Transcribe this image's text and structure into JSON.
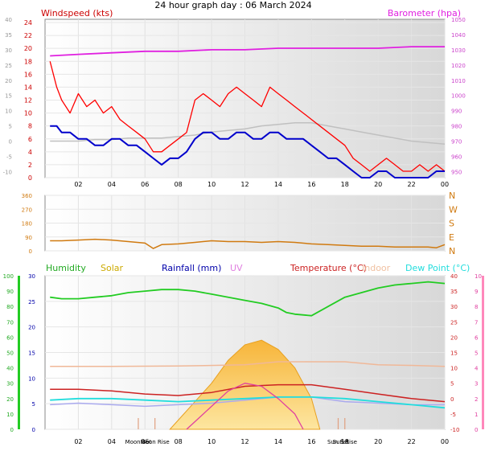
{
  "title": "24 hour graph day : 06 March 2024",
  "colors": {
    "wind_avg": "#0000cc",
    "wind_gust": "#ff0000",
    "barometer": "#e020e0",
    "temp_c_light": "#c0c0c0",
    "direction": "#d07a10",
    "humidity": "#22cc22",
    "solar": "#f8c040",
    "rain": "#0000aa",
    "uv": "#e040a0",
    "temperature": "#cc2222",
    "indoor": "#f0b898",
    "dewpoint": "#22dddd",
    "outdoor_light": "#aaaaee"
  },
  "chart_data": [
    {
      "type": "line",
      "panel": "wind-barometer",
      "title": "",
      "left_axis_title": "Windspeed (kts)",
      "right_axis_title": "Barometer (hpa)",
      "x_ticks": [
        "02",
        "04",
        "06",
        "08",
        "10",
        "12",
        "14",
        "16",
        "18",
        "20",
        "22",
        "00"
      ],
      "x_tick_hours": [
        2,
        4,
        6,
        8,
        10,
        12,
        14,
        16,
        18,
        20,
        22,
        24
      ],
      "left_ticks": [
        "0",
        "2",
        "4",
        "6",
        "8",
        "10",
        "12",
        "14",
        "16",
        "18",
        "20",
        "22",
        "24"
      ],
      "left_ylim": [
        0,
        24.5
      ],
      "outer_ticks": [
        "-10",
        "-5",
        "0",
        "5",
        "10",
        "15",
        "20",
        "25",
        "30",
        "35",
        "40"
      ],
      "outer_ylim": [
        -12,
        40
      ],
      "right_ticks": [
        "950",
        "960",
        "970",
        "980",
        "990",
        "1000",
        "1010",
        "1020",
        "1030",
        "1040",
        "1050"
      ],
      "right_ylim": [
        946,
        1050
      ],
      "series": [
        {
          "key": "gust",
          "hours": [
            0.3,
            0.7,
            1,
            1.5,
            2,
            2.5,
            3,
            3.5,
            4,
            4.5,
            5,
            5.5,
            6,
            6.5,
            7,
            7.5,
            8,
            8.5,
            9,
            9.5,
            10,
            10.5,
            11,
            11.5,
            12,
            12.5,
            13,
            13.5,
            14,
            14.5,
            15,
            15.5,
            16,
            16.5,
            17,
            17.5,
            18,
            18.5,
            19,
            19.5,
            20,
            20.5,
            21,
            21.5,
            22,
            22.5,
            23,
            23.5,
            24
          ],
          "values": [
            18,
            14,
            12,
            10,
            13,
            11,
            12,
            10,
            11,
            9,
            8,
            7,
            6,
            4,
            4,
            5,
            6,
            7,
            12,
            13,
            12,
            11,
            13,
            14,
            13,
            12,
            11,
            14,
            13,
            12,
            11,
            10,
            9,
            8,
            7,
            6,
            5,
            3,
            2,
            1,
            2,
            3,
            2,
            1,
            1,
            2,
            1,
            2,
            1
          ]
        },
        {
          "key": "avg",
          "hours": [
            0.3,
            0.7,
            1,
            1.5,
            2,
            2.5,
            3,
            3.5,
            4,
            4.5,
            5,
            5.5,
            6,
            6.5,
            7,
            7.5,
            8,
            8.5,
            9,
            9.5,
            10,
            10.5,
            11,
            11.5,
            12,
            12.5,
            13,
            13.5,
            14,
            14.5,
            15,
            15.5,
            16,
            16.5,
            17,
            17.5,
            18,
            18.5,
            19,
            19.5,
            20,
            20.5,
            21,
            21.5,
            22,
            22.5,
            23,
            23.5,
            24
          ],
          "values": [
            8,
            8,
            7,
            7,
            6,
            6,
            5,
            5,
            6,
            6,
            5,
            5,
            4,
            3,
            2,
            3,
            3,
            4,
            6,
            7,
            7,
            6,
            6,
            7,
            7,
            6,
            6,
            7,
            7,
            6,
            6,
            6,
            5,
            4,
            3,
            3,
            2,
            1,
            0,
            0,
            1,
            1,
            0,
            0,
            0,
            0,
            0,
            1,
            1
          ]
        },
        {
          "key": "temp",
          "hours": [
            0.3,
            1,
            2,
            3,
            4,
            5,
            6,
            7,
            8,
            9,
            10,
            11,
            12,
            13,
            14,
            15,
            16,
            17,
            18,
            19,
            20,
            21,
            22,
            23,
            24
          ],
          "values": [
            0,
            0,
            0,
            0.5,
            0.5,
            1,
            1,
            1,
            1.5,
            2,
            3,
            3.5,
            4,
            5,
            5.5,
            6,
            6,
            5,
            4,
            3,
            2,
            1,
            0,
            -0.5,
            -1
          ]
        },
        {
          "key": "baro",
          "hours": [
            0.3,
            2,
            4,
            6,
            8,
            10,
            12,
            14,
            16,
            18,
            20,
            22,
            24
          ],
          "values": [
            1026,
            1027,
            1028,
            1029,
            1029,
            1030,
            1030,
            1031,
            1031,
            1031,
            1031,
            1032,
            1032
          ]
        }
      ]
    },
    {
      "type": "line",
      "panel": "wind-direction",
      "title": "",
      "left_ticks": [
        "0",
        "90",
        "180",
        "270",
        "360"
      ],
      "ylim": [
        0,
        360
      ],
      "right_labels": [
        "N",
        "E",
        "S",
        "W",
        "N"
      ],
      "series": [
        {
          "key": "dir",
          "hours": [
            0.3,
            1,
            2,
            3,
            4,
            5,
            6,
            6.5,
            7,
            8,
            9,
            10,
            11,
            12,
            13,
            14,
            15,
            16,
            17,
            18,
            19,
            20,
            21,
            22,
            23,
            23.5,
            24
          ],
          "values": [
            65,
            65,
            70,
            75,
            70,
            60,
            50,
            15,
            40,
            45,
            55,
            65,
            60,
            60,
            55,
            60,
            55,
            45,
            40,
            35,
            30,
            30,
            25,
            25,
            25,
            20,
            40
          ]
        }
      ]
    },
    {
      "type": "line",
      "panel": "humidity-temperature",
      "title": "",
      "legend": [
        "Humidity",
        "Solar",
        "Rainfall (mm)",
        "UV",
        "Temperature (°C)",
        "Indoor",
        "Dew Point (°C)"
      ],
      "humidity_ticks": [
        "0",
        "10",
        "20",
        "30",
        "40",
        "50",
        "60",
        "70",
        "80",
        "90",
        "100"
      ],
      "humidity_ylim": [
        0,
        100
      ],
      "rain_ticks": [
        "0",
        "5",
        "10",
        "15",
        "20",
        "25",
        "30"
      ],
      "rain_ylim": [
        0,
        30
      ],
      "temp_ticks": [
        "-10",
        "-5",
        "0",
        "5",
        "10",
        "15",
        "20",
        "25",
        "30",
        "35",
        "40"
      ],
      "temp_ylim": [
        -10,
        40
      ],
      "uv_ticks": [
        "0",
        "1",
        "2",
        "3",
        "4",
        "5",
        "6",
        "7",
        "8",
        "9",
        "10"
      ],
      "uv_ylim": [
        0,
        10
      ],
      "x_ticks": [
        "02",
        "04",
        "06",
        "08",
        "10",
        "12",
        "14",
        "16",
        "18",
        "20",
        "22",
        "00"
      ],
      "x_tick_hours": [
        2,
        4,
        6,
        8,
        10,
        12,
        14,
        16,
        18,
        20,
        22,
        24
      ],
      "annotations": [
        {
          "label": "Moon Set",
          "hour": 5.6
        },
        {
          "label": "Moon Rise",
          "hour": 6.6
        },
        {
          "label": "Sun Set",
          "hour": 17.6
        },
        {
          "label": "Sun Rise",
          "hour": 18.0
        }
      ],
      "series": [
        {
          "key": "humidity",
          "hours": [
            0.3,
            1,
            2,
            3,
            4,
            4.5,
            5,
            6,
            7,
            8,
            9,
            10,
            11,
            12,
            13,
            14,
            14.5,
            15,
            16,
            17,
            18,
            19,
            20,
            21,
            22,
            23,
            24
          ],
          "values": [
            86,
            85,
            85,
            86,
            87,
            88,
            89,
            90,
            91,
            91,
            90,
            88,
            86,
            84,
            82,
            79,
            76,
            75,
            74,
            80,
            86,
            89,
            92,
            94,
            95,
            96,
            95
          ]
        },
        {
          "key": "indoor",
          "hours": [
            0.3,
            4,
            8,
            12,
            14,
            16,
            18,
            20,
            22,
            24
          ],
          "values": [
            10.5,
            10.5,
            10.6,
            11,
            12,
            12,
            12,
            11,
            10.8,
            10.5
          ]
        },
        {
          "key": "temperature",
          "hours": [
            0.3,
            2,
            4,
            6,
            8,
            10,
            12,
            14,
            16,
            18,
            20,
            22,
            24
          ],
          "values": [
            3,
            3,
            2.5,
            1.5,
            1,
            2,
            4,
            4.5,
            4.5,
            3,
            1.5,
            0,
            -1
          ]
        },
        {
          "key": "dewpoint",
          "hours": [
            0.3,
            2,
            4,
            6,
            8,
            10,
            12,
            14,
            16,
            18,
            20,
            22,
            24
          ],
          "values": [
            -0.5,
            0,
            0,
            -0.5,
            -1,
            -0.5,
            0,
            0.5,
            0.5,
            0,
            -1,
            -2,
            -3
          ]
        },
        {
          "key": "outdoor_light",
          "hours": [
            0.3,
            2,
            4,
            6,
            8,
            10,
            12,
            14,
            16,
            18,
            20,
            22,
            24
          ],
          "values": [
            -2,
            -1.5,
            -2,
            -2.5,
            -2,
            -1.5,
            -0.5,
            0.5,
            0.5,
            -1,
            -1.5,
            -2,
            -2
          ]
        },
        {
          "key": "solar",
          "hours": [
            7.5,
            8,
            9,
            10,
            11,
            12,
            13,
            14,
            15,
            16,
            16.5
          ],
          "values": [
            0,
            0.6,
            1.8,
            3,
            4.5,
            5.5,
            5.8,
            5.2,
            4,
            2,
            0
          ]
        },
        {
          "key": "uv",
          "hours": [
            8.5,
            9,
            10,
            11,
            12,
            13,
            14,
            15,
            15.5
          ],
          "values": [
            0,
            0.5,
            1.5,
            2.5,
            3,
            2.8,
            2,
            1,
            0
          ]
        }
      ]
    }
  ]
}
